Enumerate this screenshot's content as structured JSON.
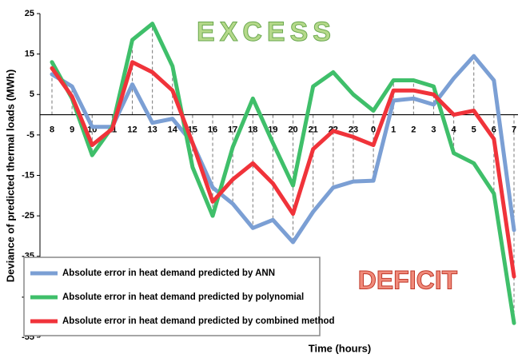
{
  "chart_data": {
    "type": "line",
    "y_label": "Deviance of predicted thermal loads (MWh)",
    "x_label": "Time (hours)",
    "annotations": [
      "EXCESS",
      "DEFICIT"
    ],
    "categories": [
      "8",
      "9",
      "10",
      "11",
      "12",
      "13",
      "14",
      "15",
      "16",
      "17",
      "18",
      "19",
      "20",
      "21",
      "22",
      "23",
      "0",
      "1",
      "2",
      "3",
      "4",
      "5",
      "6",
      "7"
    ],
    "series": [
      {
        "name": "Absolute error in heat demand predicted by ANN",
        "color": "#7b9fd4",
        "values": [
          10,
          7,
          -3,
          -3,
          7.5,
          -2,
          -1,
          -7,
          -18,
          -22,
          -28,
          -26,
          -31.5,
          -24,
          -18,
          -16.5,
          -16.3,
          3.5,
          4,
          2.5,
          9,
          14.5,
          8.5,
          -28.5
        ]
      },
      {
        "name": "Absolute error in heat demand predicted by polynomial",
        "color": "#3fbf6a",
        "values": [
          13,
          4,
          -10,
          -3,
          18.5,
          22.5,
          12,
          -13,
          -25,
          -8,
          4,
          -7,
          -17.5,
          7,
          10.5,
          5,
          1,
          8.5,
          8.5,
          7,
          -9.5,
          -12,
          -19.5,
          -51.5
        ]
      },
      {
        "name": "Absolute error in heat demand predicted by combined method",
        "color": "#f0333a",
        "values": [
          11.5,
          4.5,
          -7.5,
          -3.5,
          13,
          10.5,
          6,
          -7,
          -21.5,
          -16,
          -12,
          -17,
          -24.5,
          -8.5,
          -4,
          -5.5,
          -7.5,
          6,
          6,
          5,
          0,
          1,
          -6,
          -40
        ]
      }
    ],
    "ylim": [
      -55,
      25
    ],
    "yticks": [
      25,
      15,
      5,
      -5,
      -15,
      -25,
      -35,
      -45,
      -55
    ],
    "grid": false,
    "legend": "lower left"
  }
}
